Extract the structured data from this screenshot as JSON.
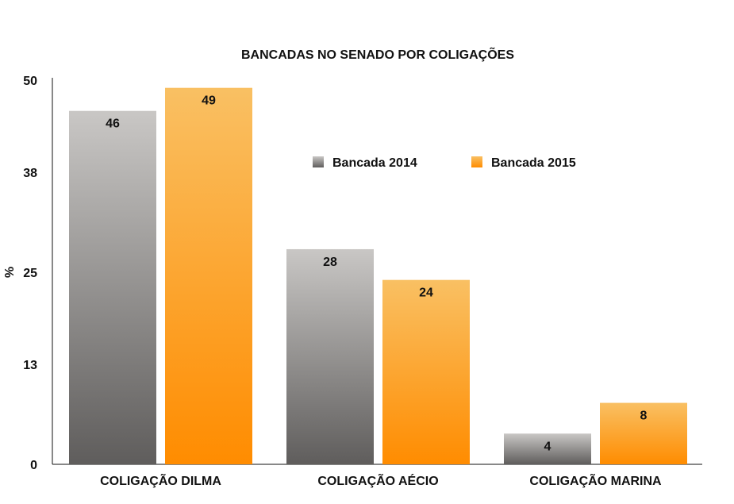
{
  "colors": {
    "series_2014_top": "#c9c7c5",
    "series_2014_bottom": "#5f5d5c",
    "series_2015_top": "#f9c063",
    "series_2015_bottom": "#ff8c00"
  },
  "chart_data": {
    "type": "bar",
    "title": "BANCADAS NO SENADO POR COLIGAÇÕES",
    "xlabel": "",
    "ylabel": "%",
    "ylim": [
      0,
      50
    ],
    "yticks": [
      "0",
      "13",
      "25",
      "38",
      "50"
    ],
    "categories": [
      "COLIGAÇÃO DILMA",
      "COLIGAÇÃO AÉCIO",
      "COLIGAÇÃO MARINA"
    ],
    "series": [
      {
        "name": "Bancada 2014",
        "values": [
          46,
          28,
          4
        ]
      },
      {
        "name": "Bancada 2015",
        "values": [
          49,
          24,
          8
        ]
      }
    ],
    "legend_position": "top-center",
    "grid": false
  }
}
